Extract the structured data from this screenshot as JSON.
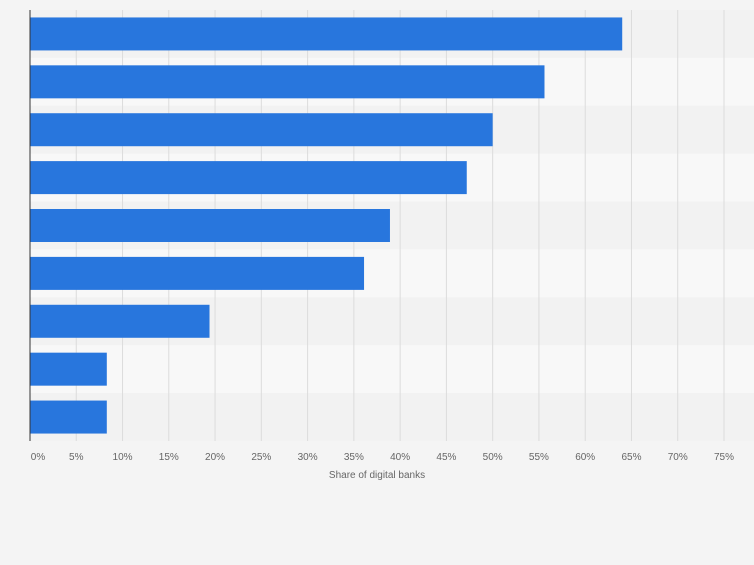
{
  "chart_data": {
    "type": "bar",
    "orientation": "horizontal",
    "categories": [
      "",
      "",
      "",
      "",
      "",
      "",
      "",
      "",
      ""
    ],
    "values": [
      64,
      55.6,
      50,
      47.2,
      38.9,
      36.1,
      19.4,
      8.3,
      8.3
    ],
    "xlabel": "Share of digital banks",
    "ylabel": "",
    "xlim": [
      0,
      75
    ],
    "x_ticks": [
      "0%",
      "5%",
      "10%",
      "15%",
      "20%",
      "25%",
      "30%",
      "35%",
      "40%",
      "45%",
      "50%",
      "55%",
      "60%",
      "65%",
      "70%",
      "75%"
    ],
    "grid": true,
    "legend": "none",
    "colors": {
      "bar": "#2876dd",
      "band_dark": "#f2f2f2",
      "band_light": "#f8f8f8",
      "grid": "#dcdcdc",
      "axis": "#333333",
      "tick_text": "#666666"
    }
  }
}
